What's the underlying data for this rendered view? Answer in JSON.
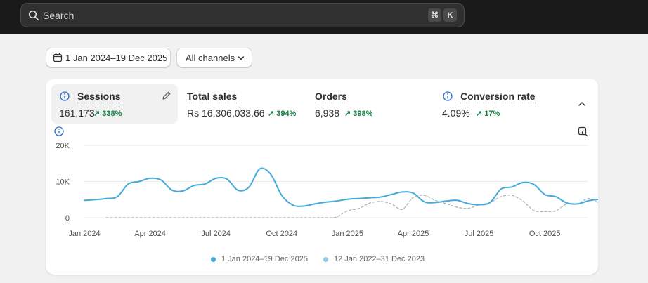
{
  "search": {
    "placeholder": "Search",
    "shortcut_cmd": "⌘",
    "shortcut_key": "K"
  },
  "filters": {
    "date_range": "1 Jan 2024–19 Dec 2025",
    "channels": "All channels"
  },
  "metrics": [
    {
      "title": "Sessions",
      "value": "161,173",
      "change": "338%"
    },
    {
      "title": "Total sales",
      "value": "Rs 16,306,033.66",
      "change": "394%"
    },
    {
      "title": "Orders",
      "value": "6,938",
      "change": "398%"
    },
    {
      "title": "Conversion rate",
      "value": "4.09%",
      "change": "17%"
    }
  ],
  "colors": {
    "primary_series": "#45a9d9",
    "comparison_series": "#a9b4bd",
    "positive": "#108043"
  },
  "chart_data": {
    "type": "line",
    "y_ticks": [
      "20K",
      "10K",
      "0"
    ],
    "x_ticks": [
      "Jan 2024",
      "Apr 2024",
      "Jul 2024",
      "Oct 2024",
      "Jan 2025",
      "Apr 2025",
      "Jul 2025",
      "Oct 2025"
    ],
    "ylim": [
      0,
      20000
    ],
    "grid": true,
    "legend_placement": "bottom",
    "x_months": [
      0,
      0.5,
      1,
      1.5,
      2,
      2.5,
      3,
      3.5,
      4,
      4.5,
      5,
      5.5,
      6,
      6.5,
      7,
      7.5,
      8,
      8.5,
      9,
      9.5,
      10,
      10.5,
      11,
      11.5,
      12,
      12.5,
      13,
      13.5,
      14,
      14.5,
      15,
      15.5,
      16,
      16.5,
      17,
      17.5,
      18,
      18.5,
      19,
      19.5,
      20,
      20.5,
      21,
      21.5,
      22,
      22.5,
      23,
      23.5
    ],
    "series": [
      {
        "name": "1 Jan 2024–19 Dec 2025",
        "style": "solid",
        "values": [
          4800,
          5000,
          5300,
          5800,
          9300,
          10000,
          10900,
          10400,
          7600,
          7400,
          8900,
          9300,
          10900,
          10700,
          7600,
          8400,
          13500,
          12000,
          6200,
          3500,
          3200,
          3800,
          4300,
          4600,
          5100,
          5300,
          5500,
          5700,
          6400,
          7100,
          6800,
          4400,
          4200,
          4600,
          4800,
          3900,
          3600,
          4200,
          7900,
          8500,
          9700,
          9200,
          6400,
          5800,
          4100,
          3800,
          4700,
          5100
        ]
      },
      {
        "name": "12 Jan 2022–31 Dec 2023",
        "style": "dashed",
        "values": [
          null,
          null,
          0,
          0,
          0,
          0,
          0,
          0,
          0,
          0,
          0,
          0,
          0,
          0,
          0,
          0,
          0,
          0,
          0,
          0,
          0,
          0,
          0,
          200,
          1900,
          2500,
          4000,
          4500,
          3800,
          2300,
          5600,
          6200,
          4800,
          3900,
          2900,
          2600,
          3500,
          4200,
          5800,
          6200,
          4600,
          2000,
          1700,
          1900,
          3800,
          3900,
          5300,
          3900
        ]
      }
    ]
  },
  "legend": [
    {
      "label": "1 Jan 2024–19 Dec 2025",
      "color": "#45a9d9"
    },
    {
      "label": "12 Jan 2022–31 Dec 2023",
      "color": "#8fcaea"
    }
  ]
}
